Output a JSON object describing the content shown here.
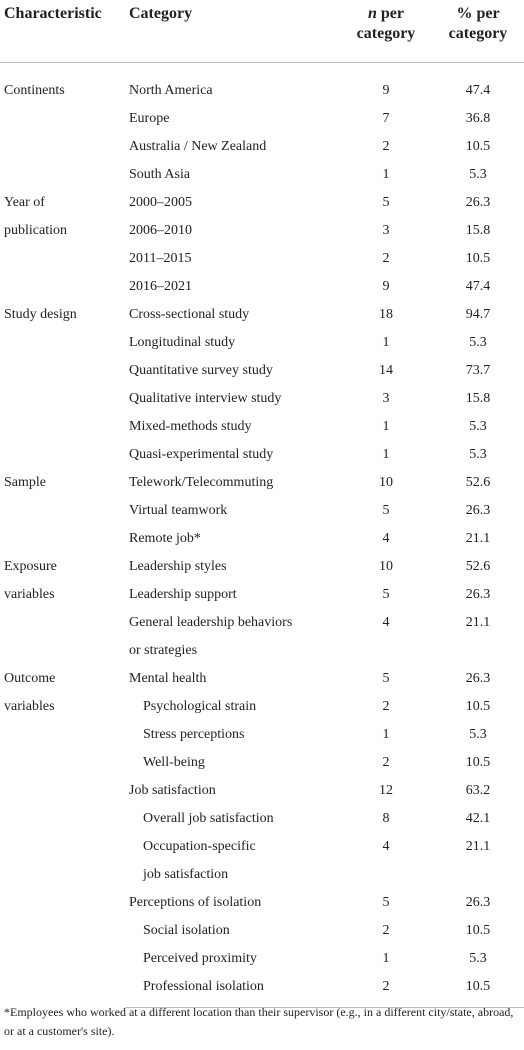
{
  "table": {
    "headers": [
      "Characteristic",
      "Category",
      [
        "n",
        "per category"
      ],
      "% per category"
    ],
    "groups": [
      {
        "characteristic": "Continents",
        "rows": [
          {
            "category": "North America",
            "n": 9,
            "pct": 47.4
          },
          {
            "category": "Europe",
            "n": 7,
            "pct": 36.8
          },
          {
            "category": "Australia / New Zealand",
            "n": 2,
            "pct": 10.5
          },
          {
            "category": "South Asia",
            "n": 1,
            "pct": 5.3
          }
        ]
      },
      {
        "characteristic": [
          "Year of",
          "publication"
        ],
        "rows": [
          {
            "category": "2000–2005",
            "n": 5,
            "pct": 26.3
          },
          {
            "category": "2006–2010",
            "n": 3,
            "pct": 15.8
          },
          {
            "category": "2011–2015",
            "n": 2,
            "pct": 10.5
          },
          {
            "category": "2016–2021",
            "n": 9,
            "pct": 47.4
          }
        ]
      },
      {
        "characteristic": "Study design",
        "rows": [
          {
            "category": "Cross-sectional study",
            "n": 18,
            "pct": 94.7
          },
          {
            "category": "Longitudinal study",
            "n": 1,
            "pct": 5.3
          },
          {
            "category": "Quantitative survey study",
            "n": 14,
            "pct": 73.7
          },
          {
            "category": "Qualitative interview study",
            "n": 3,
            "pct": 15.8
          },
          {
            "category": "Mixed-methods study",
            "n": 1,
            "pct": 5.3
          },
          {
            "category": "Quasi-experimental study",
            "n": 1,
            "pct": 5.3
          }
        ]
      },
      {
        "characteristic": "Sample",
        "rows": [
          {
            "category": "Telework/Telecommuting",
            "n": 10,
            "pct": 52.6
          },
          {
            "category": "Virtual teamwork",
            "n": 5,
            "pct": 26.3
          },
          {
            "category": "Remote job*",
            "n": 4,
            "pct": 21.1
          }
        ]
      },
      {
        "characteristic": [
          "Exposure",
          "variables"
        ],
        "rows": [
          {
            "category": "Leadership styles",
            "n": 10,
            "pct": 52.6
          },
          {
            "category": "Leadership support",
            "n": 5,
            "pct": 26.3
          },
          {
            "category": [
              "General leadership behaviors",
              "or strategies"
            ],
            "n": 4,
            "pct": 21.1
          }
        ]
      },
      {
        "characteristic": [
          "Outcome",
          "variables"
        ],
        "rows": [
          {
            "category": "Mental health",
            "n": 5,
            "pct": 26.3,
            "subcategories": [
              {
                "category": "Psychological strain",
                "n": 2,
                "pct": 10.5
              },
              {
                "category": "Stress perceptions",
                "n": 1,
                "pct": 5.3
              },
              {
                "category": "Well-being",
                "n": 2,
                "pct": 10.5
              }
            ]
          },
          {
            "category": "Job satisfaction",
            "n": 12,
            "pct": 63.2,
            "subcategories": [
              {
                "category": "Overall job satisfaction",
                "n": 8,
                "pct": 42.1
              },
              {
                "category": [
                  "Occupation-specific",
                  "job satisfaction"
                ],
                "n": 4,
                "pct": 21.1
              }
            ]
          },
          {
            "category": "Perceptions of isolation",
            "n": 5,
            "pct": 26.3,
            "subcategories": [
              {
                "category": "Social isolation",
                "n": 2,
                "pct": 10.5
              },
              {
                "category": "Perceived proximity",
                "n": 1,
                "pct": 5.3
              },
              {
                "category": "Professional isolation",
                "n": 2,
                "pct": 10.5
              }
            ]
          }
        ]
      }
    ],
    "footnote": "*Employees who worked at a different location than their supervisor (e.g., in a different city/state, abroad, or at a customer's site)."
  }
}
